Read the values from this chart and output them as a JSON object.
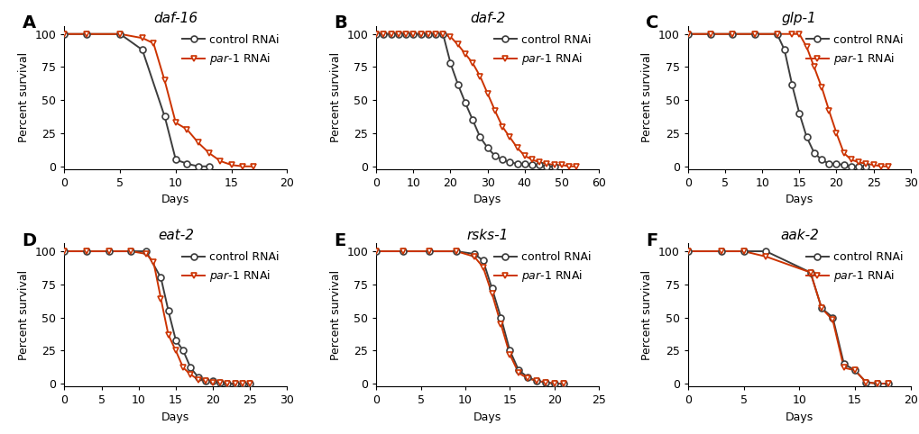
{
  "panels": [
    {
      "label": "A",
      "title": "daf-16",
      "xlim": [
        0,
        20
      ],
      "xticks": [
        0,
        5,
        10,
        15,
        20
      ],
      "control": {
        "x": [
          0,
          2,
          5,
          7,
          9,
          10,
          11,
          12,
          13
        ],
        "y": [
          100,
          100,
          100,
          88,
          38,
          5,
          2,
          0,
          0
        ]
      },
      "par1": {
        "x": [
          0,
          2,
          5,
          7,
          8,
          9,
          10,
          11,
          12,
          13,
          14,
          15,
          16,
          17
        ],
        "y": [
          100,
          100,
          100,
          97,
          93,
          65,
          33,
          28,
          18,
          10,
          4,
          1,
          0,
          0
        ]
      }
    },
    {
      "label": "B",
      "title": "daf-2",
      "xlim": [
        0,
        60
      ],
      "xticks": [
        0,
        10,
        20,
        30,
        40,
        50,
        60
      ],
      "control": {
        "x": [
          0,
          2,
          4,
          6,
          8,
          10,
          12,
          14,
          16,
          18,
          20,
          22,
          24,
          26,
          28,
          30,
          32,
          34,
          36,
          38,
          40,
          42,
          44,
          46,
          48
        ],
        "y": [
          100,
          100,
          100,
          100,
          100,
          100,
          100,
          100,
          100,
          100,
          78,
          62,
          48,
          35,
          22,
          14,
          8,
          5,
          3,
          2,
          2,
          1,
          1,
          0,
          0
        ]
      },
      "par1": {
        "x": [
          0,
          2,
          4,
          6,
          8,
          10,
          12,
          14,
          16,
          18,
          20,
          22,
          24,
          26,
          28,
          30,
          32,
          34,
          36,
          38,
          40,
          42,
          44,
          46,
          48,
          50,
          52,
          54
        ],
        "y": [
          100,
          100,
          100,
          100,
          100,
          100,
          100,
          100,
          100,
          100,
          98,
          92,
          85,
          78,
          68,
          55,
          42,
          30,
          22,
          14,
          8,
          5,
          3,
          2,
          1,
          1,
          0,
          0
        ]
      }
    },
    {
      "label": "C",
      "title": "glp-1",
      "xlim": [
        0,
        30
      ],
      "xticks": [
        0,
        5,
        10,
        15,
        20,
        25,
        30
      ],
      "control": {
        "x": [
          0,
          3,
          6,
          9,
          12,
          13,
          14,
          15,
          16,
          17,
          18,
          19,
          20,
          21,
          22,
          23,
          24
        ],
        "y": [
          100,
          100,
          100,
          100,
          100,
          88,
          62,
          40,
          22,
          10,
          5,
          2,
          2,
          1,
          0,
          0,
          0
        ]
      },
      "par1": {
        "x": [
          0,
          3,
          6,
          9,
          12,
          14,
          15,
          16,
          17,
          18,
          19,
          20,
          21,
          22,
          23,
          24,
          25,
          26,
          27
        ],
        "y": [
          100,
          100,
          100,
          100,
          100,
          100,
          100,
          90,
          75,
          60,
          42,
          25,
          10,
          5,
          3,
          2,
          1,
          0,
          0
        ]
      }
    },
    {
      "label": "D",
      "title": "eat-2",
      "xlim": [
        0,
        30
      ],
      "xticks": [
        0,
        5,
        10,
        15,
        20,
        25,
        30
      ],
      "control": {
        "x": [
          0,
          3,
          6,
          9,
          11,
          13,
          14,
          15,
          16,
          17,
          18,
          19,
          20,
          21,
          22,
          23,
          24,
          25
        ],
        "y": [
          100,
          100,
          100,
          100,
          100,
          80,
          55,
          33,
          25,
          12,
          5,
          2,
          2,
          1,
          0,
          0,
          0,
          0
        ]
      },
      "par1": {
        "x": [
          0,
          3,
          6,
          9,
          11,
          12,
          13,
          14,
          15,
          16,
          17,
          18,
          19,
          20,
          21,
          22,
          23,
          24,
          25
        ],
        "y": [
          100,
          100,
          100,
          100,
          98,
          92,
          64,
          37,
          25,
          12,
          7,
          3,
          2,
          1,
          1,
          0,
          0,
          0,
          0
        ]
      }
    },
    {
      "label": "E",
      "title": "rsks-1",
      "xlim": [
        0,
        25
      ],
      "xticks": [
        0,
        5,
        10,
        15,
        20,
        25
      ],
      "control": {
        "x": [
          0,
          3,
          6,
          9,
          11,
          12,
          13,
          14,
          15,
          16,
          17,
          18,
          19,
          20,
          21
        ],
        "y": [
          100,
          100,
          100,
          100,
          98,
          93,
          72,
          50,
          25,
          10,
          5,
          2,
          1,
          0,
          0
        ]
      },
      "par1": {
        "x": [
          0,
          3,
          6,
          9,
          11,
          12,
          13,
          14,
          15,
          16,
          17,
          18,
          19,
          20,
          21
        ],
        "y": [
          100,
          100,
          100,
          100,
          96,
          88,
          68,
          45,
          22,
          8,
          4,
          2,
          1,
          0,
          0
        ]
      }
    },
    {
      "label": "F",
      "title": "aak-2",
      "xlim": [
        0,
        20
      ],
      "xticks": [
        0,
        5,
        10,
        15,
        20
      ],
      "control": {
        "x": [
          0,
          3,
          5,
          7,
          11,
          12,
          13,
          14,
          15,
          16,
          17,
          18
        ],
        "y": [
          100,
          100,
          100,
          100,
          84,
          57,
          50,
          15,
          10,
          1,
          0,
          0
        ]
      },
      "par1": {
        "x": [
          0,
          3,
          5,
          7,
          11,
          12,
          13,
          14,
          15,
          16,
          17,
          18
        ],
        "y": [
          100,
          100,
          100,
          96,
          84,
          57,
          48,
          12,
          10,
          1,
          0,
          0
        ]
      }
    }
  ],
  "control_color": "#3d3d3d",
  "par1_color": "#cc3300",
  "ylabel": "Percent survival",
  "xlabel": "Days",
  "yticks": [
    0,
    25,
    50,
    75,
    100
  ],
  "ylim": [
    0,
    100
  ],
  "label_fontsize": 14,
  "title_fontsize": 11,
  "axis_fontsize": 9,
  "legend_fontsize": 9,
  "marker_size": 5,
  "line_width": 1.4
}
